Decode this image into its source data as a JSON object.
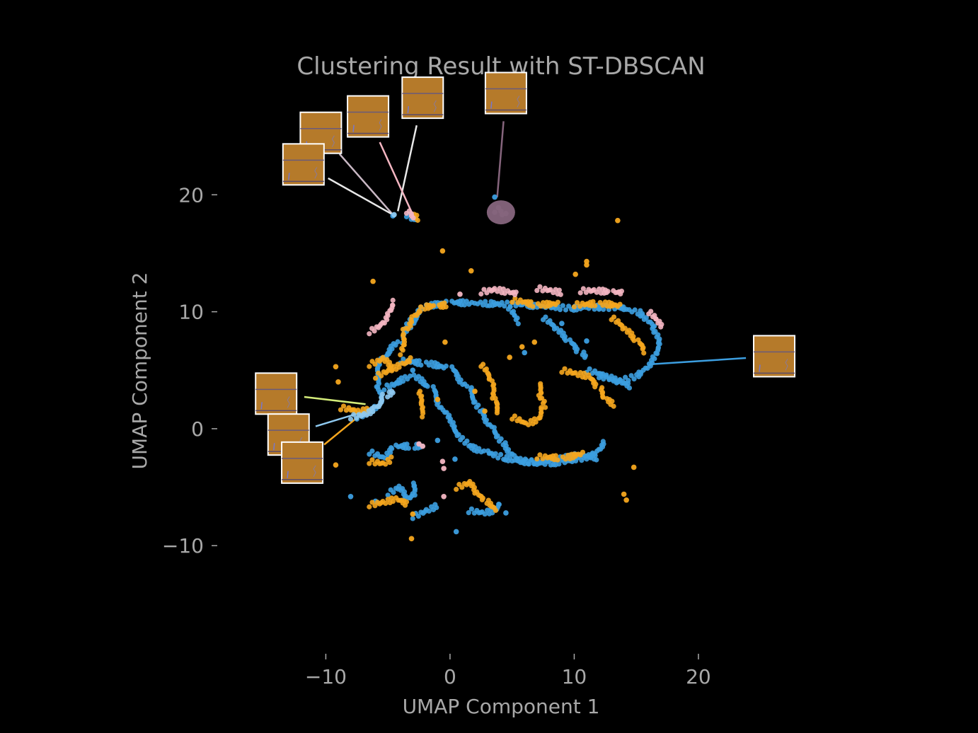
{
  "chart_data": {
    "type": "scatter",
    "title": "Clustering Result with ST-DBSCAN",
    "xlabel": "UMAP Component 1",
    "ylabel": "UMAP Component 2",
    "xlim": [
      -18,
      31
    ],
    "ylim": [
      -19,
      30
    ],
    "x_ticks": [
      -10,
      0,
      10,
      20
    ],
    "x_tick_labels": [
      "−10",
      "0",
      "10",
      "20"
    ],
    "y_ticks": [
      20,
      10,
      0,
      -10
    ],
    "y_tick_labels": [
      "20",
      "10",
      "0",
      "−10"
    ],
    "grid": false,
    "colors": {
      "background": "#000000",
      "text": "#a8a8a8",
      "blue": "#3c9ee0",
      "orange": "#f5a61e",
      "pink": "#f4b6c2",
      "mauve": "#86657d",
      "lightblue": "#8ec9f0",
      "white": "#e8e8e8",
      "lime": "#d4ec7a",
      "thumbnail": "#b57a2a"
    },
    "series": [
      {
        "name": "cluster-blue",
        "color": "#3c9ee0",
        "paths": [
          [
            [
              -3.5,
              8.5
            ],
            [
              -2,
              10.5
            ],
            [
              0,
              10.8
            ],
            [
              3,
              10.7
            ],
            [
              6,
              10.6
            ],
            [
              8,
              10.4
            ],
            [
              10,
              10.3
            ],
            [
              12,
              10.4
            ],
            [
              14,
              10.3
            ],
            [
              15.5,
              9.8
            ],
            [
              16.4,
              8.5
            ],
            [
              16.8,
              7.2
            ],
            [
              16.2,
              5.8
            ],
            [
              15.2,
              4.6
            ],
            [
              13.5,
              4
            ],
            [
              12,
              4.6
            ]
          ],
          [
            [
              -4,
              5.8
            ],
            [
              -2,
              5.6
            ],
            [
              0,
              5.2
            ],
            [
              1.5,
              3.5
            ],
            [
              2.5,
              1.5
            ],
            [
              3.5,
              0
            ],
            [
              4.5,
              -1.5
            ],
            [
              5.5,
              -2.6
            ],
            [
              7,
              -3
            ],
            [
              8.5,
              -2.9
            ],
            [
              10,
              -2.7
            ],
            [
              11.5,
              -2.2
            ],
            [
              12.5,
              -1
            ]
          ],
          [
            [
              -5.3,
              3.5
            ],
            [
              -3,
              4.5
            ],
            [
              -1.5,
              3.5
            ],
            [
              0,
              0.5
            ],
            [
              1.5,
              -1.5
            ],
            [
              3,
              -2
            ],
            [
              4.5,
              -2.5
            ],
            [
              6,
              -2.9
            ],
            [
              8,
              -2.7
            ],
            [
              10,
              -2.3
            ],
            [
              12,
              -2.5
            ]
          ],
          [
            [
              -5.5,
              2.5
            ],
            [
              -6,
              3.5
            ],
            [
              -5.5,
              6
            ],
            [
              -4,
              7.5
            ],
            [
              -3,
              9.5
            ]
          ],
          [
            [
              7.5,
              9.5
            ],
            [
              8.5,
              8.5
            ],
            [
              9.5,
              7.5
            ],
            [
              10.5,
              6.5
            ],
            [
              11,
              6
            ]
          ],
          [
            [
              11,
              5
            ],
            [
              12.5,
              4.5
            ],
            [
              13.5,
              4
            ],
            [
              14.7,
              3.6
            ]
          ],
          [
            [
              -7.5,
              1
            ],
            [
              -6.5,
              1.5
            ],
            [
              -6,
              2
            ]
          ],
          [
            [
              -6.5,
              -2
            ],
            [
              -5.5,
              -2.5
            ],
            [
              -4.5,
              -1.5
            ],
            [
              -3,
              -1.5
            ],
            [
              -2,
              -1.5
            ]
          ],
          [
            [
              -5,
              -5.5
            ],
            [
              -4.2,
              -5
            ],
            [
              -3.5,
              -6
            ],
            [
              -3,
              -5.5
            ],
            [
              -2.8,
              -4.5
            ]
          ],
          [
            [
              1.5,
              -7
            ],
            [
              2.5,
              -7.2
            ],
            [
              3.5,
              -7
            ],
            [
              4,
              -6.2
            ]
          ],
          [
            [
              -3,
              -7.5
            ],
            [
              -2,
              -7
            ],
            [
              -1,
              -6.5
            ]
          ],
          [
            [
              4.7,
              10.4
            ],
            [
              5.1,
              9.6
            ],
            [
              5.4,
              9
            ]
          ],
          [
            [
              -3.5,
              18.3
            ],
            [
              -3,
              17.8
            ],
            [
              -2.8,
              18.2
            ]
          ]
        ],
        "points": [
          [
            -4.6,
            18.2
          ],
          [
            -8,
            -5.8
          ],
          [
            -6,
            -6.2
          ],
          [
            0.5,
            -8.8
          ],
          [
            4.5,
            -7.2
          ],
          [
            0.4,
            -2.6
          ],
          [
            -3,
            5
          ],
          [
            11,
            7.5
          ],
          [
            9,
            9
          ],
          [
            6,
            6.5
          ],
          [
            -1,
            -1
          ],
          [
            3.6,
            19.8
          ]
        ]
      },
      {
        "name": "cluster-orange",
        "color": "#f5a61e",
        "paths": [
          [
            [
              -4,
              6.5
            ],
            [
              -3.6,
              8.5
            ],
            [
              -3,
              9.6
            ],
            [
              -2.2,
              10.4
            ],
            [
              -1,
              10.5
            ],
            [
              0,
              10.6
            ]
          ],
          [
            [
              -6,
              4.5
            ],
            [
              -5,
              5
            ],
            [
              -4,
              5.5
            ],
            [
              -3,
              6
            ]
          ],
          [
            [
              -6.5,
              5.5
            ],
            [
              -5.5,
              6
            ],
            [
              -4.5,
              5
            ]
          ],
          [
            [
              2.5,
              5.5
            ],
            [
              3.3,
              4
            ],
            [
              3.5,
              2.5
            ],
            [
              4,
              1.2
            ]
          ],
          [
            [
              5,
              1
            ],
            [
              6,
              0.4
            ],
            [
              7,
              0.8
            ],
            [
              7.5,
              2
            ],
            [
              7.2,
              3
            ],
            [
              7.5,
              4
            ]
          ],
          [
            [
              9,
              5
            ],
            [
              10,
              4.7
            ],
            [
              11,
              4.5
            ],
            [
              12,
              3.5
            ],
            [
              12.5,
              2.5
            ],
            [
              13.5,
              2
            ]
          ],
          [
            [
              13,
              9.5
            ],
            [
              14,
              8.5
            ],
            [
              15,
              7.5
            ],
            [
              15.8,
              6.5
            ]
          ],
          [
            [
              10,
              10.6
            ],
            [
              12,
              10.7
            ],
            [
              14,
              10.5
            ]
          ],
          [
            [
              5,
              11
            ],
            [
              7,
              10.6
            ],
            [
              9,
              10.7
            ]
          ],
          [
            [
              -8.8,
              1.8
            ],
            [
              -7.5,
              1.5
            ],
            [
              -6.5,
              1.6
            ]
          ],
          [
            [
              -6.5,
              -2.8
            ],
            [
              -5.5,
              -3
            ],
            [
              -4.7,
              -2.5
            ]
          ],
          [
            [
              -6.5,
              -6.5
            ],
            [
              -5.5,
              -6.3
            ],
            [
              -4.5,
              -6
            ],
            [
              -3.2,
              -6.5
            ]
          ],
          [
            [
              0.5,
              -5
            ],
            [
              1.5,
              -4.6
            ],
            [
              2,
              -5.5
            ],
            [
              2.8,
              -6.2
            ],
            [
              4,
              -7
            ]
          ],
          [
            [
              -2.6,
              18
            ],
            [
              -3.2,
              18.3
            ]
          ],
          [
            [
              7,
              -2.4
            ],
            [
              9,
              -2.5
            ],
            [
              11,
              -2.1
            ]
          ],
          [
            [
              -2.5,
              3.2
            ],
            [
              -2.4,
              2
            ],
            [
              -2.3,
              1
            ]
          ]
        ],
        "points": [
          [
            13.5,
            17.8
          ],
          [
            10.1,
            13.2
          ],
          [
            11,
            14
          ],
          [
            -0.6,
            15.2
          ],
          [
            1.7,
            13.5
          ],
          [
            -6.2,
            12.6
          ],
          [
            -9.2,
            5.3
          ],
          [
            -9,
            4
          ],
          [
            -0.4,
            7.4
          ],
          [
            4.8,
            6.1
          ],
          [
            5.8,
            7
          ],
          [
            6.8,
            7.4
          ],
          [
            14.8,
            -3.3
          ],
          [
            14,
            -5.6
          ],
          [
            14.2,
            -6.1
          ],
          [
            -9.2,
            -3.1
          ],
          [
            -3.1,
            -9.4
          ],
          [
            -3,
            -7.3
          ],
          [
            -1,
            2.5
          ],
          [
            2,
            3.2
          ],
          [
            2.8,
            1.5
          ],
          [
            11,
            14.3
          ]
        ]
      },
      {
        "name": "cluster-pink",
        "color": "#f4b6c2",
        "paths": [
          [
            [
              -6.5,
              8.3
            ],
            [
              -5.5,
              9
            ],
            [
              -5,
              10
            ],
            [
              -4.5,
              11
            ]
          ],
          [
            [
              2.5,
              11.7
            ],
            [
              3.5,
              11.9
            ],
            [
              4.5,
              11.7
            ],
            [
              5.5,
              11.5
            ]
          ],
          [
            [
              7,
              12
            ],
            [
              8,
              11.8
            ],
            [
              9,
              11.6
            ]
          ],
          [
            [
              10.5,
              11.8
            ],
            [
              11.5,
              11.8
            ],
            [
              13,
              11.7
            ],
            [
              14,
              11.6
            ]
          ],
          [
            [
              16,
              10
            ],
            [
              16.5,
              9.3
            ],
            [
              17,
              8.6
            ]
          ],
          [
            [
              -3.5,
              18.6
            ],
            [
              -3.2,
              18.3
            ],
            [
              -3,
              18
            ]
          ]
        ],
        "points": [
          [
            -0.6,
            -2.8
          ],
          [
            -0.5,
            -3.4
          ],
          [
            -0.5,
            -5.8
          ],
          [
            -2.5,
            -1.3
          ],
          [
            -2.2,
            -1.5
          ],
          [
            0.8,
            11.5
          ],
          [
            -3.1,
            18.2
          ]
        ]
      },
      {
        "name": "cluster-mauve",
        "color": "#86657d",
        "paths": [],
        "points": [
          [
            4.1,
            18.6
          ],
          [
            4.2,
            18.3
          ],
          [
            3.9,
            18.9
          ],
          [
            3.6,
            18.5
          ],
          [
            4.5,
            18.4
          ]
        ]
      },
      {
        "name": "cluster-lightblue",
        "color": "#8ec9f0",
        "paths": [
          [
            [
              -8,
              1
            ],
            [
              -7,
              1.2
            ],
            [
              -6,
              1.8
            ],
            [
              -5.2,
              2.9
            ],
            [
              -4.4,
              3.2
            ]
          ]
        ],
        "points": [
          [
            -4.5,
            18.3
          ]
        ]
      }
    ],
    "annotations": [
      {
        "name": "thumbnail-top-1",
        "color": "#e8e8e8",
        "thumb": [
          -2.2,
          28.3
        ],
        "target": [
          -4.2,
          18.6
        ]
      },
      {
        "name": "thumbnail-top-2",
        "color": "#f4b6c2",
        "thumb": [
          -6.6,
          26.7
        ],
        "target": [
          -3,
          18.3
        ]
      },
      {
        "name": "thumbnail-top-3",
        "color": "#c9b8c4",
        "thumb": [
          -10.4,
          25.3
        ],
        "target": [
          -4.6,
          18.3
        ]
      },
      {
        "name": "thumbnail-top-4",
        "color": "#e8e8e8",
        "thumb": [
          -11.8,
          22.6
        ],
        "target": [
          -4.6,
          18.3
        ]
      },
      {
        "name": "thumbnail-top-mauve",
        "color": "#86657d",
        "thumb": [
          4.5,
          28.7
        ],
        "target": [
          3.8,
          19.8
        ]
      },
      {
        "name": "thumbnail-right",
        "color": "#3c9ee0",
        "thumb": [
          26.1,
          6.2
        ],
        "target": [
          16,
          5.5
        ]
      },
      {
        "name": "thumbnail-left-1",
        "color": "#d4ec7a",
        "thumb": [
          -14,
          3
        ],
        "target": [
          -6.8,
          2.1
        ]
      },
      {
        "name": "thumbnail-left-2",
        "color": "#8ec9f0",
        "thumb": [
          -13,
          -0.5
        ],
        "target": [
          -6.5,
          1.6
        ]
      },
      {
        "name": "thumbnail-left-3",
        "color": "#f5a61e",
        "thumb": [
          -11.9,
          -2.9
        ],
        "target": [
          -6.5,
          1.8
        ]
      }
    ]
  }
}
